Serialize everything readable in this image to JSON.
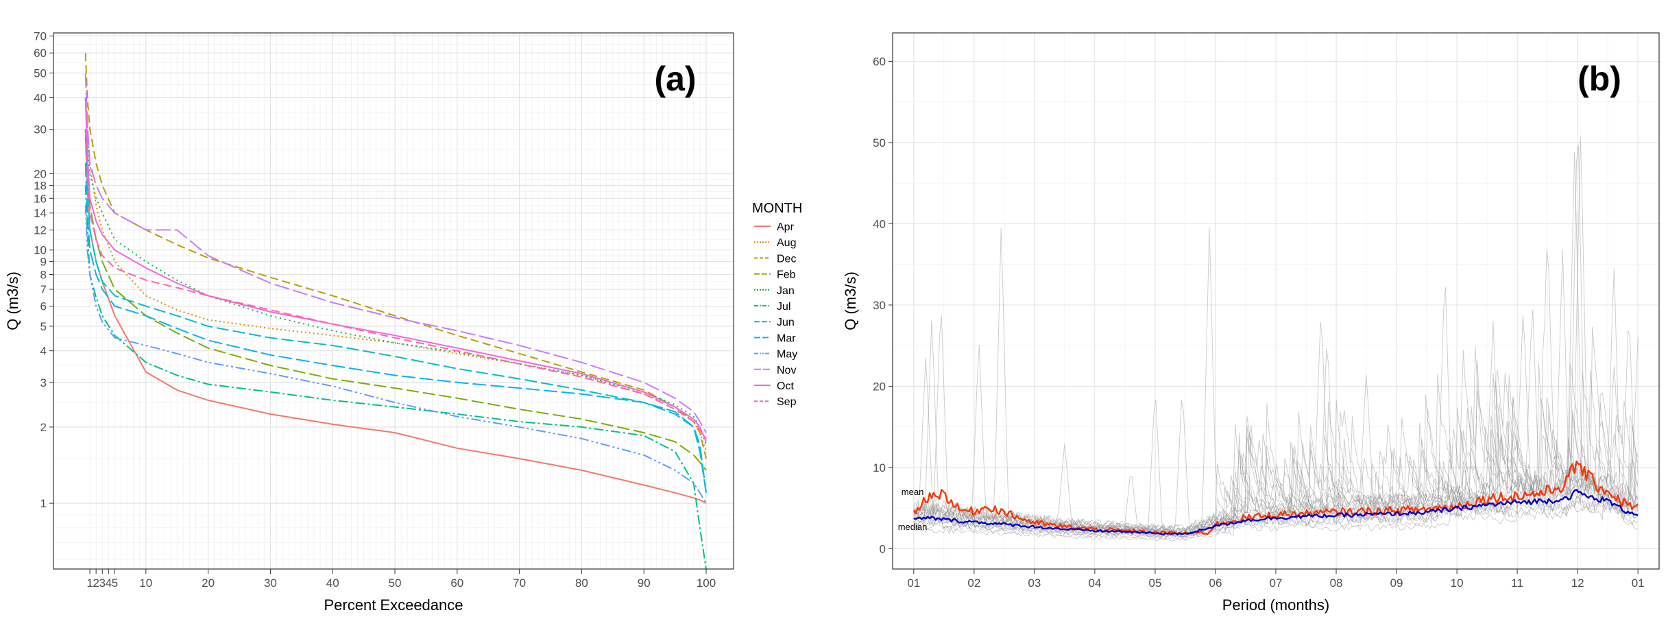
{
  "chart_data": [
    {
      "type": "line",
      "panel_label": "(a)",
      "xlabel": "Percent Exceedance",
      "ylabel": "Q (m3/s)",
      "yscale": "log",
      "xlim": [
        0,
        100
      ],
      "ylim": [
        0.55,
        72
      ],
      "x_ticks": [
        "1",
        "2",
        "3",
        "4",
        "5",
        "10",
        "20",
        "30",
        "40",
        "50",
        "60",
        "70",
        "80",
        "90",
        "100"
      ],
      "y_ticks": [
        "1",
        "2",
        "3",
        "4",
        "5",
        "6",
        "7",
        "8",
        "9",
        "10",
        "12",
        "14",
        "16",
        "18",
        "20",
        "30",
        "40",
        "50",
        "60",
        "70"
      ],
      "grid": true,
      "legend": {
        "title": "MONTH",
        "placement": "right"
      },
      "x": [
        0.3,
        0.6,
        1,
        2,
        3,
        5,
        10,
        15,
        20,
        30,
        40,
        50,
        60,
        70,
        80,
        90,
        95,
        98,
        99,
        100
      ],
      "series": [
        {
          "name": "Apr",
          "color": "#F8766D",
          "dash": "solid",
          "values": [
            28,
            18,
            12,
            9,
            7.5,
            5.5,
            3.3,
            2.8,
            2.55,
            2.25,
            2.05,
            1.9,
            1.65,
            1.5,
            1.35,
            1.18,
            1.1,
            1.05,
            1.03,
            1.0
          ]
        },
        {
          "name": "Aug",
          "color": "#DE8C00",
          "dash": "2,4",
          "values": [
            40,
            30,
            22,
            15,
            12,
            9,
            6.6,
            5.8,
            5.3,
            4.9,
            4.6,
            4.3,
            3.9,
            3.55,
            3.2,
            2.7,
            2.4,
            2.1,
            1.9,
            1.6
          ]
        },
        {
          "name": "Dec",
          "color": "#B79F00",
          "dash": "12,6",
          "values": [
            60,
            40,
            30,
            22,
            18,
            14,
            12,
            10.5,
            9.3,
            7.8,
            6.6,
            5.5,
            4.6,
            3.9,
            3.3,
            2.8,
            2.4,
            2.1,
            1.9,
            1.5
          ]
        },
        {
          "name": "Feb",
          "color": "#7CAE00",
          "dash": "18,6",
          "values": [
            40,
            25,
            15,
            11,
            9,
            7,
            5.5,
            4.7,
            4.1,
            3.5,
            3.1,
            2.85,
            2.6,
            2.35,
            2.15,
            1.9,
            1.75,
            1.55,
            1.45,
            1.35
          ]
        },
        {
          "name": "Jan",
          "color": "#00BA38",
          "dash": "2,5",
          "values": [
            40,
            28,
            20,
            16,
            14,
            11,
            9,
            7.6,
            6.6,
            5.5,
            4.8,
            4.3,
            3.95,
            3.55,
            3.2,
            2.75,
            2.45,
            2.2,
            2.0,
            1.7
          ]
        },
        {
          "name": "Jul",
          "color": "#00C08B",
          "dash": "14,4,3,4",
          "values": [
            18,
            12,
            8,
            6.5,
            5.5,
            4.6,
            3.6,
            3.2,
            2.95,
            2.75,
            2.55,
            2.4,
            2.25,
            2.1,
            2.0,
            1.85,
            1.6,
            1.2,
            0.8,
            0.55
          ]
        },
        {
          "name": "Jun",
          "color": "#00BFC4",
          "dash": "18,6",
          "values": [
            30,
            18,
            12,
            9,
            7.5,
            6.6,
            6.0,
            5.5,
            5.0,
            4.5,
            4.2,
            3.8,
            3.4,
            3.1,
            2.8,
            2.5,
            2.25,
            2.0,
            1.6,
            1.1
          ]
        },
        {
          "name": "Mar",
          "color": "#00B4F0",
          "dash": "20,6",
          "values": [
            22,
            14,
            10,
            8,
            7,
            6,
            5.5,
            4.9,
            4.4,
            3.85,
            3.5,
            3.2,
            3.0,
            2.85,
            2.7,
            2.5,
            2.3,
            2.0,
            1.7,
            1.1
          ]
        },
        {
          "name": "May",
          "color": "#619CFF",
          "dash": "14,4,3,4,3,4",
          "values": [
            15,
            10,
            8,
            6,
            5.2,
            4.5,
            4.2,
            3.9,
            3.6,
            3.25,
            2.9,
            2.5,
            2.2,
            2.0,
            1.8,
            1.55,
            1.35,
            1.2,
            1.1,
            1.0
          ]
        },
        {
          "name": "Nov",
          "color": "#C77CFF",
          "dash": "22,6",
          "values": [
            50,
            32,
            22,
            18,
            16,
            14,
            12,
            12,
            9.5,
            7.4,
            6.2,
            5.4,
            4.8,
            4.2,
            3.6,
            3.0,
            2.6,
            2.3,
            2.1,
            1.9
          ]
        },
        {
          "name": "Oct",
          "color": "#F564E3",
          "dash": "solid",
          "values": [
            40,
            24,
            16,
            13,
            11.5,
            10,
            8.5,
            7.4,
            6.6,
            5.7,
            5.1,
            4.6,
            4.1,
            3.65,
            3.25,
            2.75,
            2.4,
            2.15,
            2.0,
            1.75
          ]
        },
        {
          "name": "Sep",
          "color": "#FF64B0",
          "dash": "12,6",
          "values": [
            30,
            20,
            14,
            11,
            9.5,
            8.5,
            7.6,
            7.1,
            6.6,
            5.8,
            5.1,
            4.5,
            4.0,
            3.55,
            3.15,
            2.7,
            2.35,
            2.1,
            1.95,
            1.8
          ]
        }
      ]
    },
    {
      "type": "line",
      "panel_label": "(b)",
      "xlabel": "Period (months)",
      "ylabel": "Q (m3/s)",
      "xlim": [
        -0.35,
        12.35
      ],
      "ylim": [
        -2.5,
        63.5
      ],
      "x_ticks": [
        "01",
        "02",
        "03",
        "04",
        "05",
        "06",
        "07",
        "08",
        "09",
        "10",
        "11",
        "12",
        "01"
      ],
      "y_ticks": [
        "0",
        "10",
        "20",
        "30",
        "40",
        "50",
        "60"
      ],
      "grid": true,
      "annotations": [
        "mean",
        "median"
      ],
      "background_years": 20,
      "peaks": [
        {
          "x": 0.45,
          "y": 31
        },
        {
          "x": 0.3,
          "y": 29
        },
        {
          "x": 0.2,
          "y": 24
        },
        {
          "x": 1.45,
          "y": 40.5
        },
        {
          "x": 1.08,
          "y": 26
        },
        {
          "x": 4.0,
          "y": 20
        },
        {
          "x": 4.9,
          "y": 40
        },
        {
          "x": 4.45,
          "y": 20
        },
        {
          "x": 6.75,
          "y": 30
        },
        {
          "x": 6.85,
          "y": 27
        },
        {
          "x": 8.8,
          "y": 35
        },
        {
          "x": 10.1,
          "y": 30
        },
        {
          "x": 10.5,
          "y": 40
        },
        {
          "x": 10.75,
          "y": 37
        },
        {
          "x": 10.95,
          "y": 49.5
        },
        {
          "x": 11.0,
          "y": 55
        },
        {
          "x": 11.05,
          "y": 52
        },
        {
          "x": 11.6,
          "y": 36
        },
        {
          "x": 11.85,
          "y": 30
        },
        {
          "x": 12.0,
          "y": 26
        },
        {
          "x": 2.5,
          "y": 13
        },
        {
          "x": 3.6,
          "y": 10
        },
        {
          "x": 9.6,
          "y": 28
        },
        {
          "x": 7.5,
          "y": 22
        },
        {
          "x": 10.25,
          "y": 31
        }
      ],
      "series": [
        {
          "name": "mean",
          "color": "#ff3300",
          "x": [
            0,
            0.25,
            0.5,
            0.75,
            1.0,
            1.25,
            1.5,
            1.75,
            2.0,
            2.5,
            3.0,
            3.5,
            4.0,
            4.5,
            4.9,
            5.0,
            5.5,
            6.0,
            6.5,
            7.0,
            7.5,
            8.0,
            8.5,
            9.0,
            9.5,
            10.0,
            10.5,
            10.8,
            11.0,
            11.2,
            11.5,
            11.8,
            12.0
          ],
          "values": [
            4.5,
            6.5,
            6.8,
            4.8,
            4.6,
            5.2,
            4.5,
            3.8,
            3.2,
            2.7,
            2.4,
            2.2,
            2.0,
            1.9,
            2.0,
            3.0,
            3.8,
            4.2,
            4.3,
            4.5,
            4.6,
            4.7,
            4.9,
            5.2,
            6.2,
            6.5,
            7.0,
            8.0,
            10.7,
            8.5,
            7.0,
            5.5,
            5.2
          ]
        },
        {
          "name": "median",
          "color": "#0000cc",
          "x": [
            0,
            0.25,
            0.5,
            0.75,
            1.0,
            1.5,
            2.0,
            2.5,
            3.0,
            3.5,
            4.0,
            4.5,
            5.0,
            5.5,
            6.0,
            6.5,
            7.0,
            7.5,
            8.0,
            8.5,
            9.0,
            9.5,
            10.0,
            10.5,
            10.8,
            11.0,
            11.2,
            11.5,
            11.8,
            12.0
          ],
          "values": [
            3.6,
            3.8,
            3.6,
            3.4,
            3.3,
            3.0,
            2.7,
            2.4,
            2.2,
            2.1,
            1.9,
            1.8,
            2.8,
            3.5,
            3.8,
            4.0,
            4.1,
            4.2,
            4.3,
            4.5,
            4.9,
            5.4,
            5.7,
            5.9,
            6.2,
            7.0,
            6.3,
            5.9,
            4.6,
            4.3
          ]
        }
      ]
    }
  ]
}
